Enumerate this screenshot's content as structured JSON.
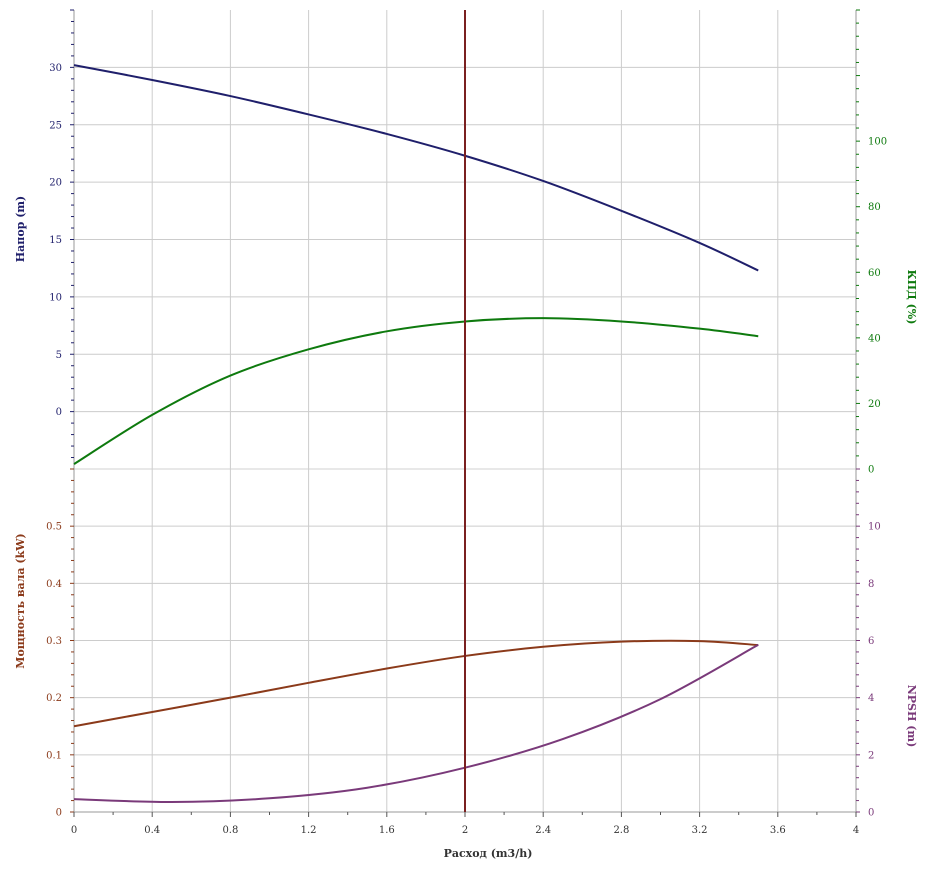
{
  "chart_data": [
    {
      "type": "line",
      "panel": "top",
      "x_axis": {
        "label": "",
        "range": [
          0,
          4
        ]
      },
      "y_left": {
        "label": "Напор (m)",
        "range": [
          -5,
          35
        ],
        "ticks": [
          0,
          5,
          10,
          15,
          20,
          25,
          30
        ],
        "color": "#1f1f6b"
      },
      "y_right": {
        "label": "КПД (%)",
        "range": [
          0,
          140
        ],
        "ticks": [
          0,
          20,
          40,
          60,
          80,
          100
        ],
        "color": "#0e7a0e"
      },
      "series": [
        {
          "axis": "left",
          "color": "#1f1f6b",
          "x": [
            0,
            0.4,
            0.8,
            1.2,
            1.6,
            2.0,
            2.4,
            2.8,
            3.2,
            3.5
          ],
          "y": [
            30.2,
            28.9,
            27.5,
            25.9,
            24.2,
            22.3,
            20.1,
            17.5,
            14.7,
            12.3
          ]
        },
        {
          "axis": "right",
          "color": "#0e7a0e",
          "x": [
            0,
            0.4,
            0.8,
            1.2,
            1.6,
            2.0,
            2.4,
            2.8,
            3.2,
            3.5
          ],
          "y": [
            1.5,
            16.5,
            28.5,
            36.5,
            42.0,
            45.0,
            46.0,
            45.0,
            42.8,
            40.5
          ]
        }
      ]
    },
    {
      "type": "line",
      "panel": "bottom",
      "x_axis": {
        "label": "Расход (m3/h)",
        "range": [
          0,
          4
        ],
        "ticks": [
          0,
          0.4,
          0.8,
          1.2,
          1.6,
          2,
          2.4,
          2.8,
          3.2,
          3.6,
          4
        ]
      },
      "y_left": {
        "label": "Мощность вала (kW)",
        "range": [
          0,
          0.6
        ],
        "ticks": [
          0,
          0.1,
          0.2,
          0.3,
          0.4,
          0.5
        ],
        "color": "#8b3a1a"
      },
      "y_right": {
        "label": "NPSH (m)",
        "range": [
          0,
          12
        ],
        "ticks": [
          0,
          2,
          4,
          6,
          8,
          10
        ],
        "color": "#7a3a7a"
      },
      "series": [
        {
          "axis": "left",
          "color": "#8b3a1a",
          "x": [
            0,
            0.4,
            0.8,
            1.2,
            1.6,
            2.0,
            2.4,
            2.8,
            3.2,
            3.5
          ],
          "y": [
            0.15,
            0.175,
            0.2,
            0.226,
            0.251,
            0.273,
            0.289,
            0.298,
            0.299,
            0.292
          ]
        },
        {
          "axis": "right",
          "color": "#7a3a7a",
          "x": [
            0,
            0.5,
            1.0,
            1.5,
            2.0,
            2.5,
            3.0,
            3.5
          ],
          "y": [
            0.45,
            0.35,
            0.48,
            0.85,
            1.55,
            2.55,
            3.95,
            5.85
          ]
        }
      ]
    }
  ],
  "operating_point": {
    "x": 2.0,
    "color": "#7a2020"
  },
  "colors": {
    "grid": "#cccccc",
    "frame": "#d0d0d0",
    "x_axis_title": "#333333"
  }
}
